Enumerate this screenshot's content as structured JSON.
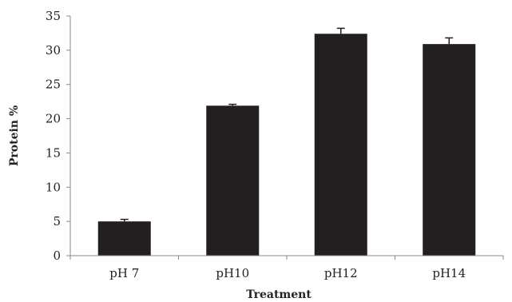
{
  "chart_data": {
    "type": "bar",
    "title": "",
    "xlabel": "Treatment",
    "ylabel": "Protein %",
    "categories": [
      "pH 7",
      "pH10",
      "pH12",
      "pH14"
    ],
    "values": [
      5.0,
      21.9,
      32.4,
      30.9
    ],
    "errors": [
      0.3,
      0.2,
      0.8,
      0.9
    ],
    "ylim": [
      0,
      35
    ],
    "yticks": [
      0,
      5,
      10,
      15,
      20,
      25,
      30,
      35
    ],
    "grid": false,
    "legend": "none",
    "colors": {
      "bar": "#231f20",
      "axis": "#888888",
      "text": "#222222"
    }
  }
}
